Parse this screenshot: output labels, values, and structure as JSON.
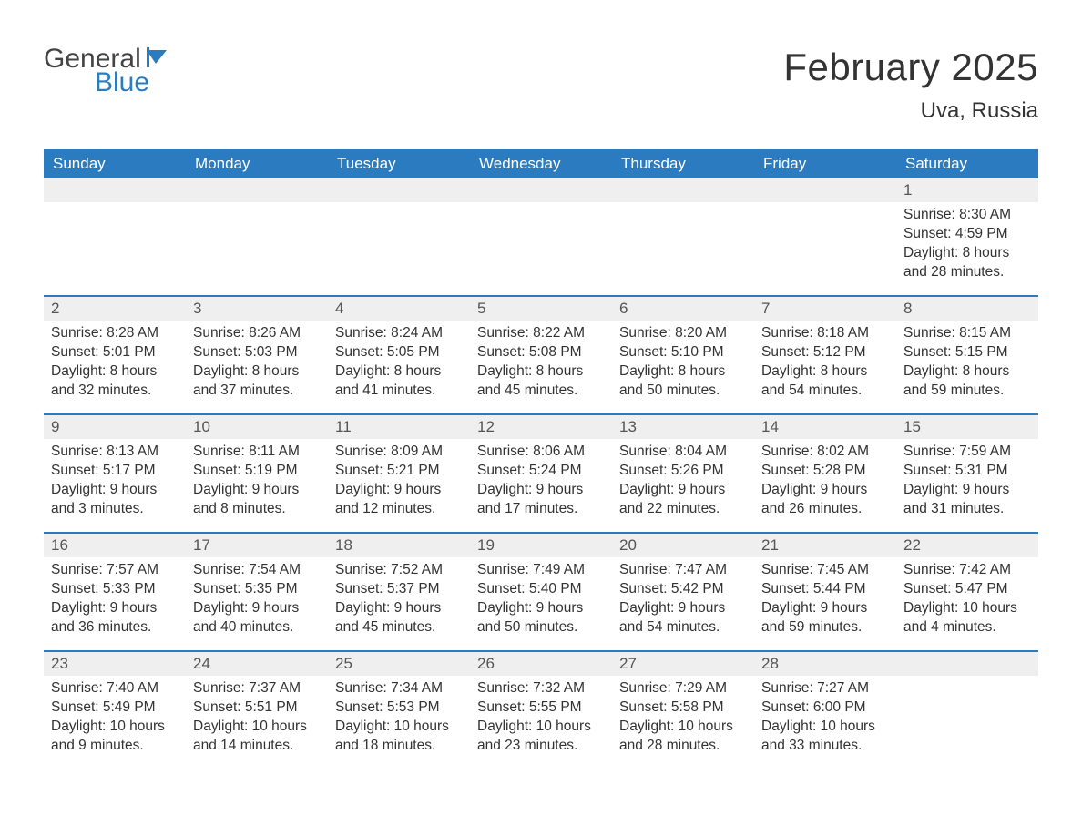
{
  "logo": {
    "general": "General",
    "blue": "Blue"
  },
  "title": "February 2025",
  "location": "Uva, Russia",
  "colors": {
    "header_bg": "#2a7bbf",
    "header_text": "#ffffff",
    "daynum_bg": "#efefef",
    "text": "#333333",
    "week_border": "#2a7bbf",
    "page_bg": "#ffffff"
  },
  "typography": {
    "title_fontsize": 42,
    "location_fontsize": 24,
    "header_fontsize": 17,
    "body_fontsize": 15.5
  },
  "day_labels": [
    "Sunday",
    "Monday",
    "Tuesday",
    "Wednesday",
    "Thursday",
    "Friday",
    "Saturday"
  ],
  "weeks": [
    [
      {
        "empty": true
      },
      {
        "empty": true
      },
      {
        "empty": true
      },
      {
        "empty": true
      },
      {
        "empty": true
      },
      {
        "empty": true
      },
      {
        "day": "1",
        "sunrise": "8:30 AM",
        "sunset": "4:59 PM",
        "daylight": "8 hours and 28 minutes."
      }
    ],
    [
      {
        "day": "2",
        "sunrise": "8:28 AM",
        "sunset": "5:01 PM",
        "daylight": "8 hours and 32 minutes."
      },
      {
        "day": "3",
        "sunrise": "8:26 AM",
        "sunset": "5:03 PM",
        "daylight": "8 hours and 37 minutes."
      },
      {
        "day": "4",
        "sunrise": "8:24 AM",
        "sunset": "5:05 PM",
        "daylight": "8 hours and 41 minutes."
      },
      {
        "day": "5",
        "sunrise": "8:22 AM",
        "sunset": "5:08 PM",
        "daylight": "8 hours and 45 minutes."
      },
      {
        "day": "6",
        "sunrise": "8:20 AM",
        "sunset": "5:10 PM",
        "daylight": "8 hours and 50 minutes."
      },
      {
        "day": "7",
        "sunrise": "8:18 AM",
        "sunset": "5:12 PM",
        "daylight": "8 hours and 54 minutes."
      },
      {
        "day": "8",
        "sunrise": "8:15 AM",
        "sunset": "5:15 PM",
        "daylight": "8 hours and 59 minutes."
      }
    ],
    [
      {
        "day": "9",
        "sunrise": "8:13 AM",
        "sunset": "5:17 PM",
        "daylight": "9 hours and 3 minutes."
      },
      {
        "day": "10",
        "sunrise": "8:11 AM",
        "sunset": "5:19 PM",
        "daylight": "9 hours and 8 minutes."
      },
      {
        "day": "11",
        "sunrise": "8:09 AM",
        "sunset": "5:21 PM",
        "daylight": "9 hours and 12 minutes."
      },
      {
        "day": "12",
        "sunrise": "8:06 AM",
        "sunset": "5:24 PM",
        "daylight": "9 hours and 17 minutes."
      },
      {
        "day": "13",
        "sunrise": "8:04 AM",
        "sunset": "5:26 PM",
        "daylight": "9 hours and 22 minutes."
      },
      {
        "day": "14",
        "sunrise": "8:02 AM",
        "sunset": "5:28 PM",
        "daylight": "9 hours and 26 minutes."
      },
      {
        "day": "15",
        "sunrise": "7:59 AM",
        "sunset": "5:31 PM",
        "daylight": "9 hours and 31 minutes."
      }
    ],
    [
      {
        "day": "16",
        "sunrise": "7:57 AM",
        "sunset": "5:33 PM",
        "daylight": "9 hours and 36 minutes."
      },
      {
        "day": "17",
        "sunrise": "7:54 AM",
        "sunset": "5:35 PM",
        "daylight": "9 hours and 40 minutes."
      },
      {
        "day": "18",
        "sunrise": "7:52 AM",
        "sunset": "5:37 PM",
        "daylight": "9 hours and 45 minutes."
      },
      {
        "day": "19",
        "sunrise": "7:49 AM",
        "sunset": "5:40 PM",
        "daylight": "9 hours and 50 minutes."
      },
      {
        "day": "20",
        "sunrise": "7:47 AM",
        "sunset": "5:42 PM",
        "daylight": "9 hours and 54 minutes."
      },
      {
        "day": "21",
        "sunrise": "7:45 AM",
        "sunset": "5:44 PM",
        "daylight": "9 hours and 59 minutes."
      },
      {
        "day": "22",
        "sunrise": "7:42 AM",
        "sunset": "5:47 PM",
        "daylight": "10 hours and 4 minutes."
      }
    ],
    [
      {
        "day": "23",
        "sunrise": "7:40 AM",
        "sunset": "5:49 PM",
        "daylight": "10 hours and 9 minutes."
      },
      {
        "day": "24",
        "sunrise": "7:37 AM",
        "sunset": "5:51 PM",
        "daylight": "10 hours and 14 minutes."
      },
      {
        "day": "25",
        "sunrise": "7:34 AM",
        "sunset": "5:53 PM",
        "daylight": "10 hours and 18 minutes."
      },
      {
        "day": "26",
        "sunrise": "7:32 AM",
        "sunset": "5:55 PM",
        "daylight": "10 hours and 23 minutes."
      },
      {
        "day": "27",
        "sunrise": "7:29 AM",
        "sunset": "5:58 PM",
        "daylight": "10 hours and 28 minutes."
      },
      {
        "day": "28",
        "sunrise": "7:27 AM",
        "sunset": "6:00 PM",
        "daylight": "10 hours and 33 minutes."
      },
      {
        "empty": true
      }
    ]
  ],
  "field_labels": {
    "sunrise": "Sunrise: ",
    "sunset": "Sunset: ",
    "daylight": "Daylight: "
  }
}
